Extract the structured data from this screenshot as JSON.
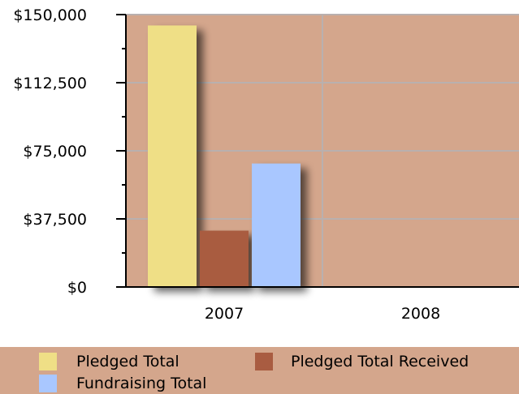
{
  "colors": {
    "plot_bg": "#d4a68c",
    "grid": "#b9b0ae",
    "pledged_total": "#efdf86",
    "pledged_total_received": "#a95c41",
    "fundraising_total": "#a9c7ff"
  },
  "chart_data": {
    "type": "bar",
    "title": "",
    "xlabel": "",
    "ylabel": "",
    "categories": [
      "2007",
      "2008"
    ],
    "ylim": [
      0,
      150000
    ],
    "yticks": [
      0,
      37500,
      75000,
      112500,
      150000
    ],
    "ytick_labels": [
      "$0",
      "$37,500",
      "$75,000",
      "$112,500",
      "$150,000"
    ],
    "grid": true,
    "legend_position": "bottom",
    "series": [
      {
        "name": "Pledged Total",
        "color": "#efdf86",
        "values": [
          144000,
          0
        ]
      },
      {
        "name": "Pledged Total Received",
        "color": "#a95c41",
        "values": [
          31000,
          0
        ]
      },
      {
        "name": "Fundraising Total",
        "color": "#a9c7ff",
        "values": [
          68000,
          0
        ]
      }
    ]
  }
}
